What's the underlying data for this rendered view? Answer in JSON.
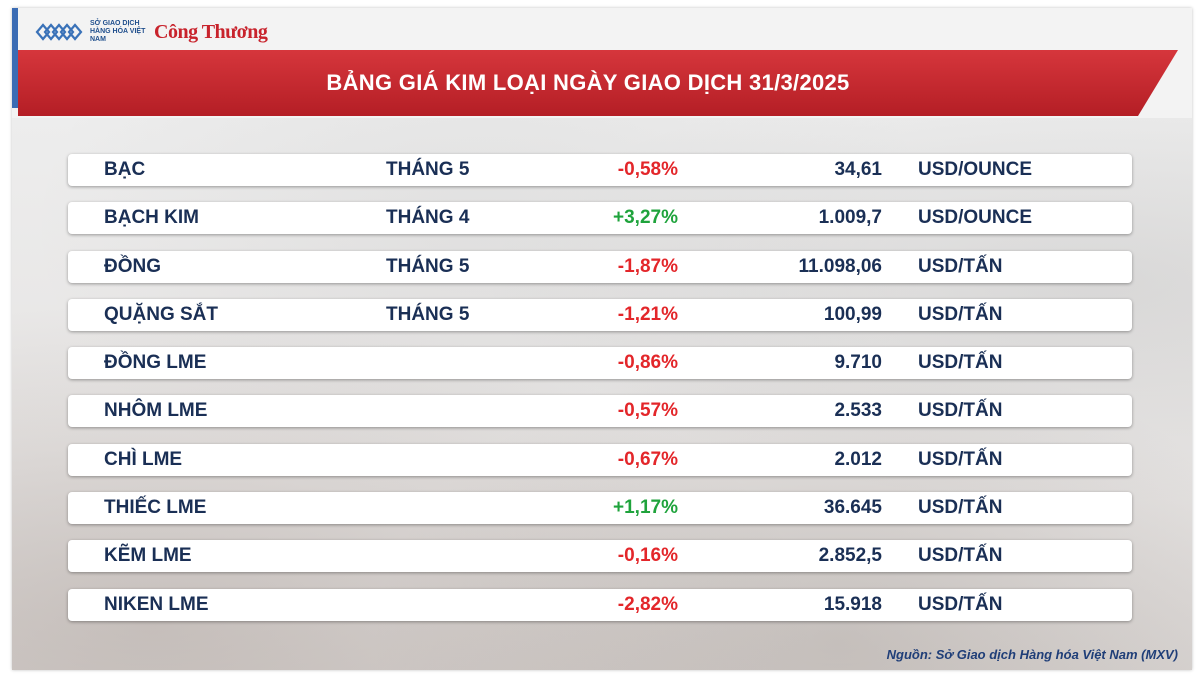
{
  "logo": {
    "org_text": "SỞ GIAO DỊCH HÀNG HÓA VIỆT NAM",
    "brand": "Công Thương"
  },
  "header": {
    "title": "BẢNG GIÁ KIM LOẠI NGÀY GIAO DỊCH 31/3/2025",
    "accent_color": "#c8232c"
  },
  "table": {
    "rows": [
      {
        "name": "BẠC",
        "month": "THÁNG 5",
        "change": "-0,58%",
        "price": "34,61",
        "unit": "USD/OUNCE",
        "trend": "neg"
      },
      {
        "name": "BẠCH KIM",
        "month": "THÁNG 4",
        "change": "+3,27%",
        "price": "1.009,7",
        "unit": "USD/OUNCE",
        "trend": "pos"
      },
      {
        "name": "ĐỒNG",
        "month": "THÁNG 5",
        "change": "-1,87%",
        "price": "11.098,06",
        "unit": "USD/TẤN",
        "trend": "neg"
      },
      {
        "name": "QUẶNG SẮT",
        "month": "THÁNG 5",
        "change": "-1,21%",
        "price": "100,99",
        "unit": "USD/TẤN",
        "trend": "neg"
      },
      {
        "name": "ĐỒNG LME",
        "month": "",
        "change": "-0,86%",
        "price": "9.710",
        "unit": "USD/TẤN",
        "trend": "neg"
      },
      {
        "name": "NHÔM LME",
        "month": "",
        "change": "-0,57%",
        "price": "2.533",
        "unit": "USD/TẤN",
        "trend": "neg"
      },
      {
        "name": "CHÌ LME",
        "month": "",
        "change": "-0,67%",
        "price": "2.012",
        "unit": "USD/TẤN",
        "trend": "neg"
      },
      {
        "name": "THIẾC LME",
        "month": "",
        "change": "+1,17%",
        "price": "36.645",
        "unit": "USD/TẤN",
        "trend": "pos"
      },
      {
        "name": "KẼM LME",
        "month": "",
        "change": "-0,16%",
        "price": "2.852,5",
        "unit": "USD/TẤN",
        "trend": "neg"
      },
      {
        "name": "NIKEN LME",
        "month": "",
        "change": "-2,82%",
        "price": "15.918",
        "unit": "USD/TẤN",
        "trend": "neg"
      }
    ]
  },
  "footer": {
    "source": "Nguồn: Sở Giao dịch Hàng hóa Việt Nam (MXV)"
  },
  "colors": {
    "negative": "#e3262a",
    "positive": "#1fa33c",
    "text": "#1a2f55"
  }
}
